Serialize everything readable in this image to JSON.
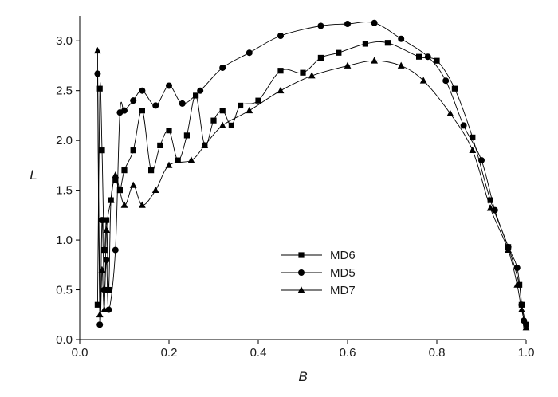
{
  "chart_data": {
    "type": "line",
    "title": "",
    "xlabel": "B",
    "ylabel": "L",
    "xlim": [
      0.0,
      1.0
    ],
    "ylim": [
      0.0,
      3.25
    ],
    "x_ticks": [
      "0.0",
      "0.2",
      "0.4",
      "0.6",
      "0.8",
      "1.0"
    ],
    "y_ticks": [
      "0.0",
      "0.5",
      "1.0",
      "1.5",
      "2.0",
      "2.5",
      "3.0"
    ],
    "grid": false,
    "legend_position": "center-bottom",
    "line_color": "#000000",
    "series": [
      {
        "name": "MD6",
        "marker": "square",
        "points": [
          [
            0.04,
            0.35
          ],
          [
            0.045,
            2.52
          ],
          [
            0.05,
            1.9
          ],
          [
            0.055,
            0.9
          ],
          [
            0.06,
            1.2
          ],
          [
            0.065,
            0.5
          ],
          [
            0.07,
            1.4
          ],
          [
            0.08,
            1.6
          ],
          [
            0.09,
            1.5
          ],
          [
            0.1,
            1.7
          ],
          [
            0.12,
            1.9
          ],
          [
            0.14,
            2.3
          ],
          [
            0.16,
            1.7
          ],
          [
            0.18,
            1.95
          ],
          [
            0.2,
            2.1
          ],
          [
            0.22,
            1.8
          ],
          [
            0.24,
            2.05
          ],
          [
            0.26,
            2.45
          ],
          [
            0.28,
            1.95
          ],
          [
            0.3,
            2.2
          ],
          [
            0.32,
            2.3
          ],
          [
            0.34,
            2.15
          ],
          [
            0.36,
            2.35
          ],
          [
            0.4,
            2.4
          ],
          [
            0.45,
            2.7
          ],
          [
            0.5,
            2.68
          ],
          [
            0.54,
            2.83
          ],
          [
            0.58,
            2.88
          ],
          [
            0.64,
            2.97
          ],
          [
            0.69,
            2.98
          ],
          [
            0.76,
            2.84
          ],
          [
            0.8,
            2.8
          ],
          [
            0.84,
            2.52
          ],
          [
            0.88,
            2.03
          ],
          [
            0.92,
            1.4
          ],
          [
            0.96,
            0.93
          ],
          [
            0.985,
            0.55
          ],
          [
            0.99,
            0.35
          ],
          [
            1.0,
            0.15
          ]
        ]
      },
      {
        "name": "MD5",
        "marker": "circle",
        "points": [
          [
            0.04,
            2.67
          ],
          [
            0.045,
            0.15
          ],
          [
            0.05,
            1.2
          ],
          [
            0.055,
            0.5
          ],
          [
            0.06,
            0.8
          ],
          [
            0.065,
            0.3
          ],
          [
            0.08,
            0.9
          ],
          [
            0.09,
            2.28
          ],
          [
            0.1,
            2.3
          ],
          [
            0.12,
            2.4
          ],
          [
            0.14,
            2.5
          ],
          [
            0.17,
            2.35
          ],
          [
            0.2,
            2.55
          ],
          [
            0.23,
            2.37
          ],
          [
            0.27,
            2.5
          ],
          [
            0.32,
            2.73
          ],
          [
            0.38,
            2.88
          ],
          [
            0.45,
            3.05
          ],
          [
            0.54,
            3.15
          ],
          [
            0.6,
            3.17
          ],
          [
            0.66,
            3.18
          ],
          [
            0.72,
            3.02
          ],
          [
            0.78,
            2.84
          ],
          [
            0.82,
            2.6
          ],
          [
            0.86,
            2.15
          ],
          [
            0.9,
            1.8
          ],
          [
            0.93,
            1.3
          ],
          [
            0.96,
            0.93
          ],
          [
            0.98,
            0.72
          ],
          [
            0.99,
            0.35
          ],
          [
            0.995,
            0.19
          ],
          [
            1.0,
            0.15
          ]
        ]
      },
      {
        "name": "MD7",
        "marker": "triangle",
        "points": [
          [
            0.04,
            2.9
          ],
          [
            0.045,
            0.25
          ],
          [
            0.05,
            0.7
          ],
          [
            0.055,
            0.3
          ],
          [
            0.06,
            1.1
          ],
          [
            0.07,
            1.4
          ],
          [
            0.08,
            1.65
          ],
          [
            0.1,
            1.35
          ],
          [
            0.12,
            1.55
          ],
          [
            0.14,
            1.35
          ],
          [
            0.17,
            1.5
          ],
          [
            0.2,
            1.75
          ],
          [
            0.25,
            1.8
          ],
          [
            0.28,
            1.95
          ],
          [
            0.32,
            2.15
          ],
          [
            0.38,
            2.3
          ],
          [
            0.45,
            2.5
          ],
          [
            0.52,
            2.65
          ],
          [
            0.6,
            2.75
          ],
          [
            0.66,
            2.8
          ],
          [
            0.72,
            2.75
          ],
          [
            0.77,
            2.6
          ],
          [
            0.83,
            2.27
          ],
          [
            0.88,
            1.9
          ],
          [
            0.92,
            1.32
          ],
          [
            0.96,
            0.9
          ],
          [
            0.98,
            0.55
          ],
          [
            0.99,
            0.3
          ],
          [
            1.0,
            0.12
          ]
        ]
      }
    ]
  }
}
